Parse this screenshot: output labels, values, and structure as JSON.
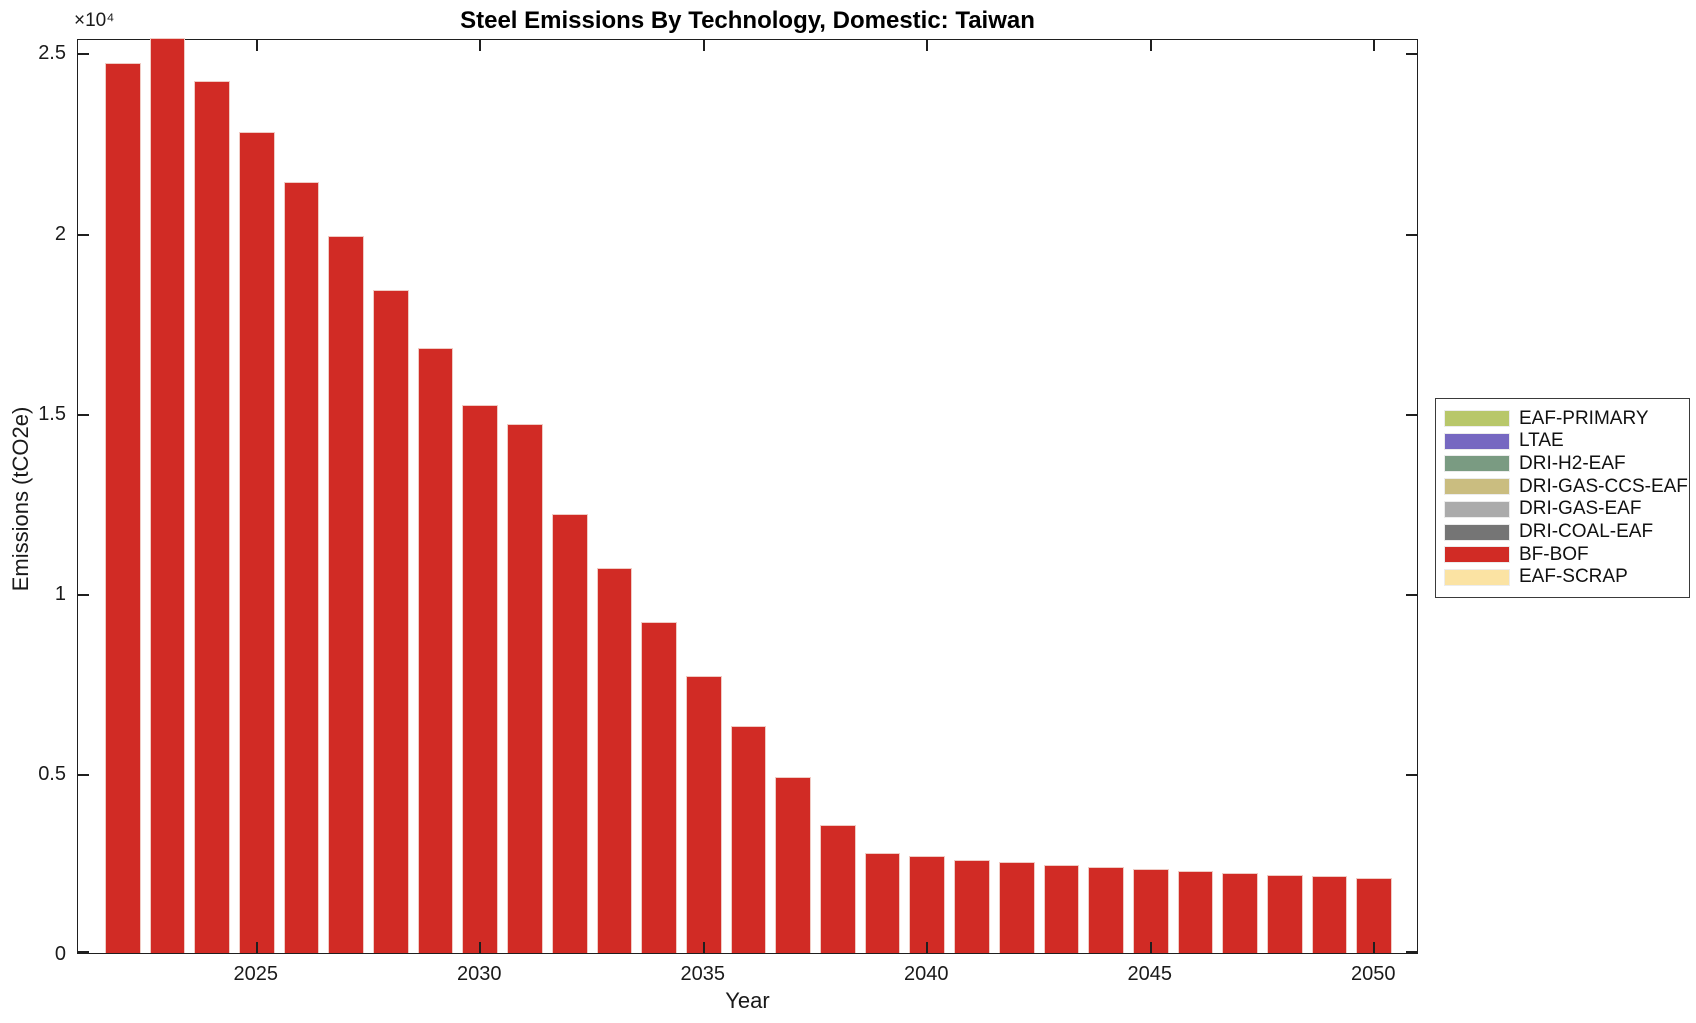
{
  "chart_data": {
    "type": "bar",
    "stacked": true,
    "title": "Steel Emissions By Technology, Domestic: Taiwan",
    "xlabel": "Year",
    "ylabel": "Emissions (tCO2e)",
    "y_multiplier_label": "×10⁴",
    "xlim": [
      2021,
      2051
    ],
    "ylim": [
      0,
      25400
    ],
    "grid": false,
    "x": [
      2022,
      2023,
      2024,
      2025,
      2026,
      2027,
      2028,
      2029,
      2030,
      2031,
      2032,
      2033,
      2034,
      2035,
      2036,
      2037,
      2038,
      2039,
      2040,
      2041,
      2042,
      2043,
      2044,
      2045,
      2046,
      2047,
      2048,
      2049,
      2050
    ],
    "series": [
      {
        "name": "BF-BOF",
        "color": "#d12b25",
        "values": [
          24700,
          25400,
          24200,
          22800,
          21400,
          19900,
          18400,
          16800,
          15200,
          14700,
          12200,
          10700,
          9200,
          7700,
          6300,
          4900,
          3550,
          2780,
          2690,
          2580,
          2530,
          2450,
          2390,
          2340,
          2280,
          2230,
          2170,
          2140,
          2090
        ]
      }
    ],
    "x_ticks": [
      {
        "value": 2025,
        "label": "2025"
      },
      {
        "value": 2030,
        "label": "2030"
      },
      {
        "value": 2035,
        "label": "2035"
      },
      {
        "value": 2040,
        "label": "2040"
      },
      {
        "value": 2045,
        "label": "2045"
      },
      {
        "value": 2050,
        "label": "2050"
      }
    ],
    "y_ticks": [
      {
        "value": 0,
        "label": "0"
      },
      {
        "value": 5000,
        "label": "0.5"
      },
      {
        "value": 10000,
        "label": "1"
      },
      {
        "value": 15000,
        "label": "1.5"
      },
      {
        "value": 20000,
        "label": "2"
      },
      {
        "value": 25000,
        "label": "2.5"
      }
    ],
    "legend_position": "right-outside",
    "legend": [
      {
        "label": "EAF-PRIMARY",
        "color": "#b8c76a"
      },
      {
        "label": "LTAE",
        "color": "#7668c1"
      },
      {
        "label": "DRI-H2-EAF",
        "color": "#7a9b82"
      },
      {
        "label": "DRI-GAS-CCS-EAF",
        "color": "#cabd80"
      },
      {
        "label": "DRI-GAS-EAF",
        "color": "#ababab"
      },
      {
        "label": "DRI-COAL-EAF",
        "color": "#757575"
      },
      {
        "label": "BF-BOF",
        "color": "#d12b25"
      },
      {
        "label": "EAF-SCRAP",
        "color": "#fbe3a3"
      }
    ]
  }
}
